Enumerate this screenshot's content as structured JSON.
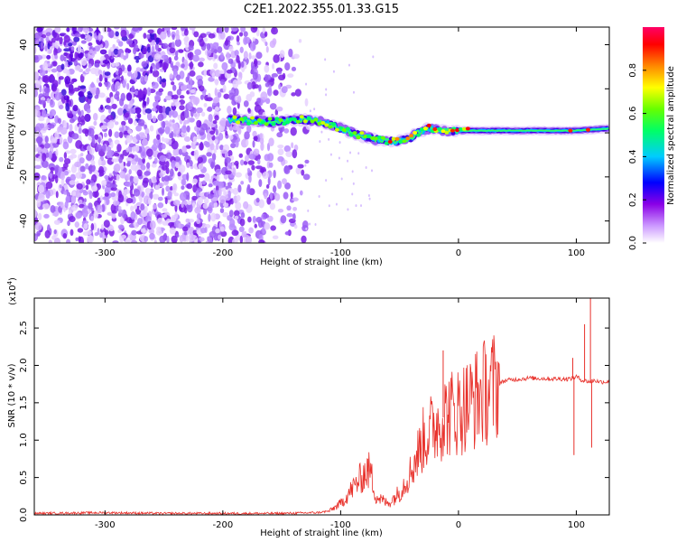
{
  "figure": {
    "title": "C2E1.2022.355.01.33.G15"
  },
  "chart_data": [
    {
      "type": "heatmap",
      "title": "",
      "xlabel": "Height of straight line (km)",
      "ylabel": "Frequency (Hz)",
      "xlim": [
        -360,
        128
      ],
      "ylim": [
        -50,
        48
      ],
      "xticks": [
        -300,
        -200,
        -100,
        0,
        100
      ],
      "yticks": [
        -40,
        -20,
        0,
        20,
        40
      ],
      "colorbar": {
        "label": "Normalized spectral amplitude",
        "range": [
          0,
          1
        ],
        "ticks": [
          "0.0",
          "0.2",
          "0.4",
          "0.6",
          "0.8"
        ],
        "colors": [
          "#ffffff",
          "#cc99ff",
          "#8a00e6",
          "#0000ff",
          "#00ccff",
          "#00ff66",
          "#66ff00",
          "#ffff00",
          "#ff8800",
          "#ff0000",
          "#ff0066"
        ]
      },
      "ridge_frequency": [
        {
          "x": -190,
          "y": 6
        },
        {
          "x": -160,
          "y": 5
        },
        {
          "x": -130,
          "y": 6
        },
        {
          "x": -115,
          "y": 5
        },
        {
          "x": -100,
          "y": 2
        },
        {
          "x": -85,
          "y": -1
        },
        {
          "x": -70,
          "y": -3
        },
        {
          "x": -55,
          "y": -4
        },
        {
          "x": -42,
          "y": -3
        },
        {
          "x": -35,
          "y": 0
        },
        {
          "x": -25,
          "y": 2
        },
        {
          "x": -10,
          "y": 1
        },
        {
          "x": 0,
          "y": 1
        },
        {
          "x": 50,
          "y": 1
        },
        {
          "x": 100,
          "y": 1
        },
        {
          "x": 128,
          "y": 2
        }
      ]
    },
    {
      "type": "line",
      "title": "",
      "xlabel": "Height of straight line (km)",
      "ylabel": "SNR (10 * v/v)",
      "yscale_label": "(x10",
      "yscale_exp": "4",
      "yscale_close": ")",
      "xlim": [
        -360,
        128
      ],
      "ylim": [
        0,
        2.9
      ],
      "xticks": [
        -300,
        -200,
        -100,
        0,
        100
      ],
      "yticks": [
        "0.0",
        "0.5",
        "1.0",
        "1.5",
        "2.0",
        "2.5"
      ],
      "series": [
        {
          "color": "#e8302a",
          "x": [
            -360,
            -300,
            -250,
            -200,
            -150,
            -120,
            -110,
            -100,
            -90,
            -80,
            -75,
            -70,
            -60,
            -50,
            -40,
            -30,
            -20,
            -10,
            0,
            10,
            20,
            30,
            40,
            60,
            80,
            95,
            100,
            105,
            112,
            115,
            120,
            128
          ],
          "y": [
            0.02,
            0.03,
            0.02,
            0.02,
            0.02,
            0.03,
            0.05,
            0.15,
            0.35,
            0.55,
            0.6,
            0.25,
            0.15,
            0.3,
            0.6,
            1.0,
            1.2,
            1.35,
            1.4,
            1.5,
            1.62,
            1.72,
            1.8,
            1.83,
            1.82,
            1.82,
            1.85,
            1.8,
            1.78,
            1.8,
            1.78,
            1.78
          ]
        }
      ],
      "spikes": [
        {
          "x": -77,
          "y": 0.75
        },
        {
          "x": -13,
          "y": 2.2
        },
        {
          "x": 97,
          "y": 2.1
        },
        {
          "x": 98,
          "y": 0.8
        },
        {
          "x": 107,
          "y": 2.55
        },
        {
          "x": 112,
          "y": 2.9
        },
        {
          "x": 113,
          "y": 0.9
        }
      ]
    }
  ]
}
